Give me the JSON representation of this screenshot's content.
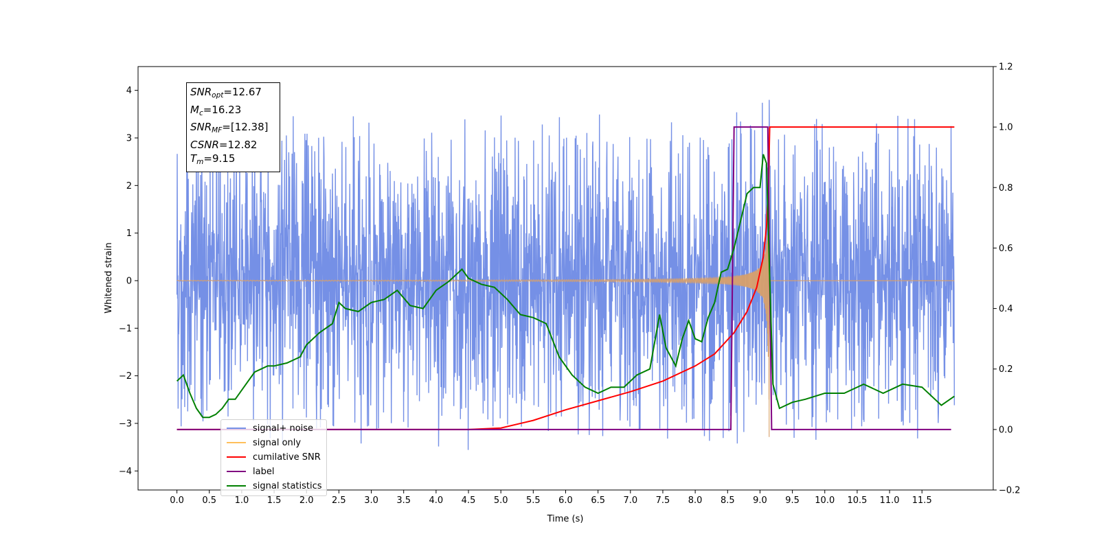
{
  "chart_data": {
    "type": "line",
    "xlabel": "Time (s)",
    "ylabel": "Whitened strain",
    "xlim": [
      -0.6,
      12.6
    ],
    "ylim": [
      -4.4,
      4.5
    ],
    "y2lim": [
      -0.2,
      1.2
    ],
    "x_ticks": [
      "0.0",
      "0.5",
      "1.0",
      "1.5",
      "2.0",
      "2.5",
      "3.0",
      "3.5",
      "4.0",
      "4.5",
      "5.0",
      "5.5",
      "6.0",
      "6.5",
      "7.0",
      "7.5",
      "8.0",
      "8.5",
      "9.0",
      "9.5",
      "10.0",
      "10.5",
      "11.0",
      "11.5"
    ],
    "y_ticks": [
      "4",
      "3",
      "2",
      "1",
      "0",
      "−1",
      "−2",
      "−3",
      "−4"
    ],
    "y2_ticks": [
      "1.2",
      "1.0",
      "0.8",
      "0.6",
      "0.4",
      "0.2",
      "0.0",
      "−0.2"
    ],
    "annotation": {
      "snr_opt": "=12.67",
      "mc": "=16.23",
      "snr_mf": "=[12.38]",
      "csnr": "=12.82",
      "tm": "=9.15"
    },
    "series": [
      {
        "name": "signal+ noise",
        "color": "#7590e6",
        "axis": "left",
        "x_range": [
          0,
          12
        ],
        "kind": "noise",
        "envelope": {
          "bulk": 1.3,
          "spike_max_up": 3.8,
          "spike_max_down": -3.8
        }
      },
      {
        "name": "signal only",
        "color": "#ffbf5a",
        "axis": "left",
        "kind": "chirp",
        "x_range": [
          0,
          12
        ],
        "merger_time": 9.15,
        "peak_amplitude": 3.7
      },
      {
        "name": "cumilative SNR",
        "color": "#ff0000",
        "axis": "right",
        "x": [
          0,
          4.5,
          5.0,
          5.5,
          6.0,
          6.5,
          7.0,
          7.5,
          8.0,
          8.3,
          8.6,
          8.8,
          8.95,
          9.05,
          9.1,
          9.13,
          9.15,
          12.0
        ],
        "values": [
          0,
          0.0,
          0.005,
          0.03,
          0.065,
          0.095,
          0.125,
          0.16,
          0.21,
          0.25,
          0.32,
          0.39,
          0.47,
          0.57,
          0.67,
          0.8,
          1.0,
          1.0
        ]
      },
      {
        "name": "label",
        "color": "#800080",
        "axis": "right",
        "x": [
          0,
          8.55,
          8.6,
          9.12,
          9.18,
          11.95
        ],
        "values": [
          0,
          0,
          1,
          1,
          0,
          0
        ]
      },
      {
        "name": "signal statistics",
        "color": "#008000",
        "axis": "right",
        "x": [
          0,
          0.1,
          0.2,
          0.3,
          0.4,
          0.5,
          0.6,
          0.7,
          0.8,
          0.9,
          1.0,
          1.2,
          1.4,
          1.5,
          1.7,
          1.9,
          2.0,
          2.2,
          2.4,
          2.5,
          2.6,
          2.8,
          3.0,
          3.2,
          3.4,
          3.6,
          3.8,
          4.0,
          4.2,
          4.4,
          4.5,
          4.7,
          4.9,
          5.1,
          5.3,
          5.5,
          5.7,
          5.9,
          6.1,
          6.3,
          6.5,
          6.7,
          6.9,
          7.1,
          7.3,
          7.45,
          7.55,
          7.7,
          7.8,
          7.9,
          8.0,
          8.1,
          8.2,
          8.3,
          8.4,
          8.5,
          8.6,
          8.7,
          8.8,
          8.9,
          9.0,
          9.05,
          9.1,
          9.15,
          9.2,
          9.3,
          9.5,
          9.7,
          10.0,
          10.3,
          10.6,
          10.9,
          11.2,
          11.5,
          11.8,
          12.0
        ],
        "values": [
          0.16,
          0.18,
          0.12,
          0.07,
          0.04,
          0.04,
          0.05,
          0.07,
          0.1,
          0.1,
          0.13,
          0.19,
          0.21,
          0.21,
          0.22,
          0.24,
          0.28,
          0.32,
          0.35,
          0.42,
          0.4,
          0.39,
          0.42,
          0.43,
          0.46,
          0.41,
          0.4,
          0.46,
          0.49,
          0.53,
          0.5,
          0.48,
          0.47,
          0.43,
          0.38,
          0.37,
          0.35,
          0.24,
          0.18,
          0.14,
          0.12,
          0.14,
          0.14,
          0.18,
          0.2,
          0.38,
          0.27,
          0.21,
          0.3,
          0.36,
          0.3,
          0.29,
          0.37,
          0.42,
          0.52,
          0.53,
          0.6,
          0.69,
          0.78,
          0.8,
          0.8,
          0.91,
          0.88,
          0.5,
          0.15,
          0.07,
          0.09,
          0.1,
          0.12,
          0.12,
          0.15,
          0.12,
          0.15,
          0.14,
          0.08,
          0.11
        ]
      }
    ]
  }
}
